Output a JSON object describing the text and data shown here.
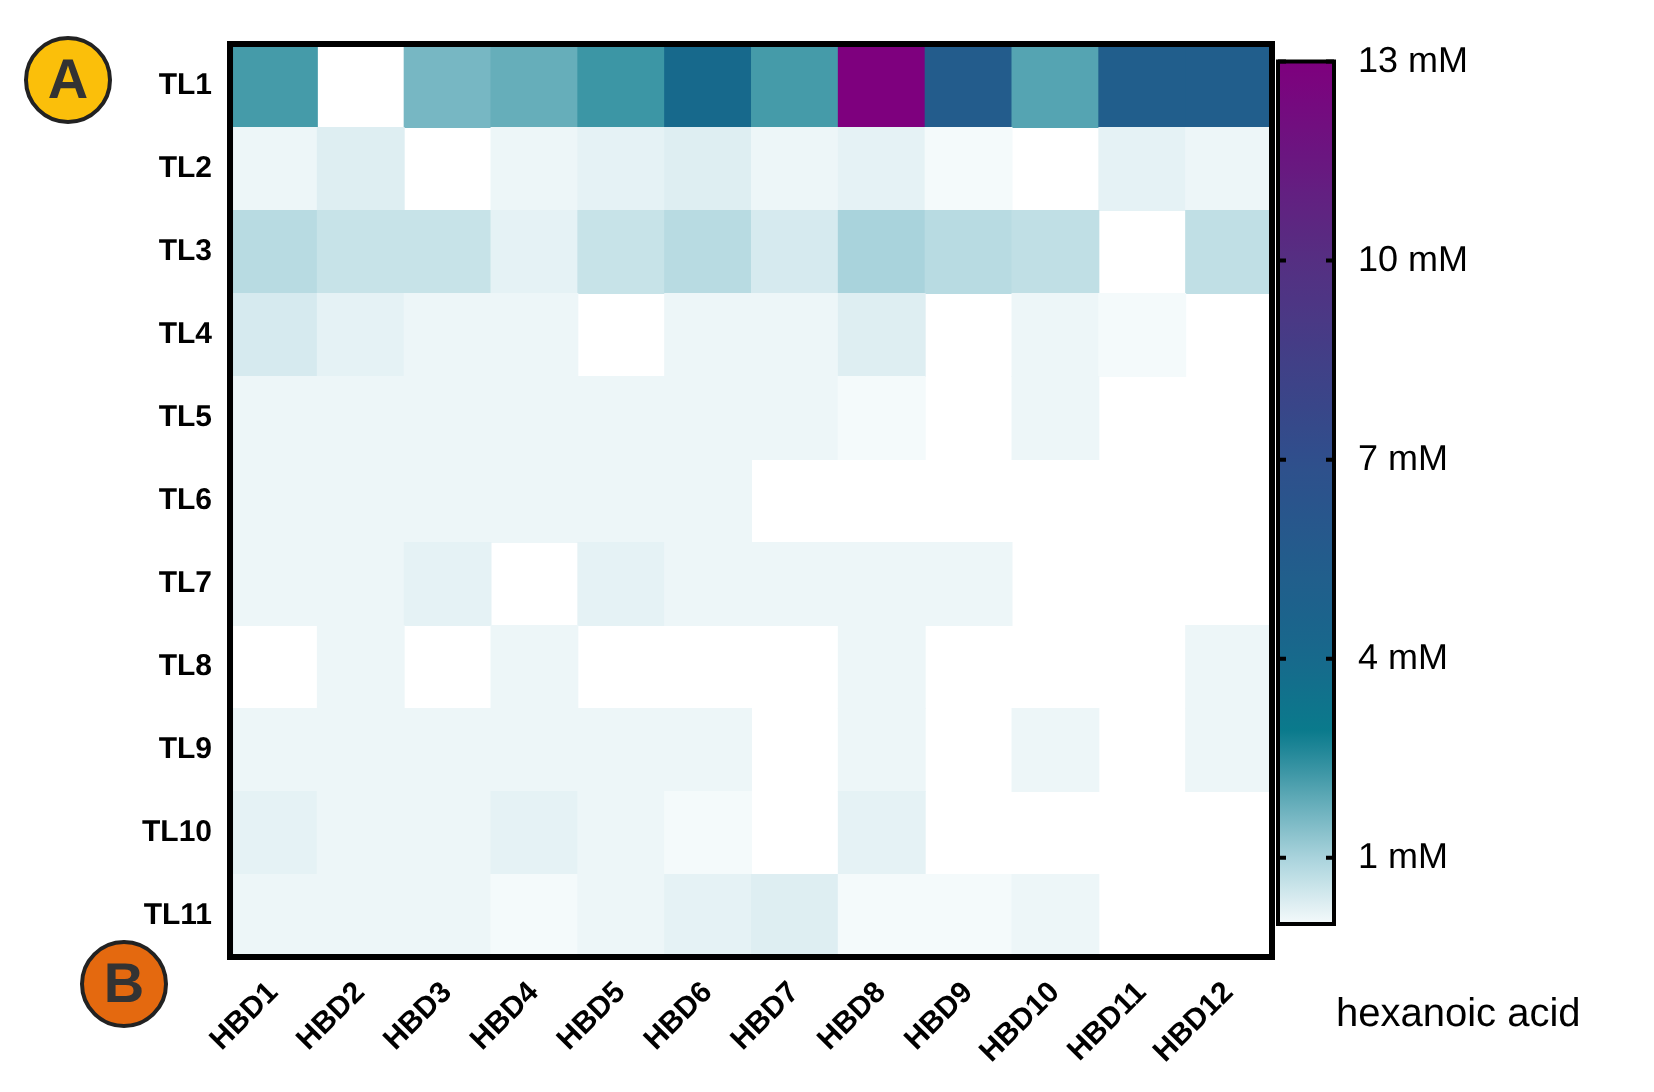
{
  "chart_data": {
    "type": "heatmap",
    "categories": [
      "HBD1",
      "HBD2",
      "HBD3",
      "HBD4",
      "HBD5",
      "HBD6",
      "HBD7",
      "HBD8",
      "HBD9",
      "HBD10",
      "HBD11",
      "HBD12"
    ],
    "y_categories": [
      "TL1",
      "TL2",
      "TL3",
      "TL4",
      "TL5",
      "TL6",
      "TL7",
      "TL8",
      "TL9",
      "TL10",
      "TL11"
    ],
    "cells": [
      [
        2.2,
        null,
        1.6,
        1.8,
        2.3,
        4.0,
        2.2,
        13,
        5.5,
        2.0,
        5.3,
        5.3
      ],
      [
        0.1,
        0.3,
        null,
        0.1,
        0.2,
        0.3,
        0.1,
        0.2,
        0.0,
        null,
        0.2,
        0.1
      ],
      [
        0.8,
        0.6,
        0.6,
        0.2,
        0.6,
        0.8,
        0.4,
        1.0,
        0.8,
        0.7,
        null,
        0.7
      ],
      [
        0.4,
        0.2,
        0.1,
        0.1,
        null,
        0.1,
        0.1,
        0.3,
        null,
        0.1,
        0.0,
        null
      ],
      [
        0.1,
        0.1,
        0.1,
        0.1,
        0.1,
        0.1,
        0.1,
        0.0,
        null,
        0.1,
        null,
        null
      ],
      [
        0.1,
        0.1,
        0.1,
        0.1,
        0.1,
        0.1,
        null,
        null,
        null,
        null,
        null,
        null
      ],
      [
        0.1,
        0.1,
        0.2,
        null,
        0.2,
        0.1,
        0.1,
        0.1,
        0.1,
        null,
        null,
        null
      ],
      [
        null,
        0.1,
        null,
        0.1,
        null,
        null,
        null,
        0.1,
        null,
        null,
        null,
        0.1
      ],
      [
        0.1,
        0.1,
        0.1,
        0.1,
        0.1,
        0.1,
        null,
        0.1,
        null,
        0.1,
        null,
        0.1
      ],
      [
        0.2,
        0.1,
        0.1,
        0.2,
        0.1,
        0.0,
        null,
        0.2,
        null,
        null,
        null,
        null
      ],
      [
        0.1,
        0.1,
        0.1,
        0.0,
        0.1,
        0.2,
        0.3,
        0.0,
        0.0,
        0.1,
        null,
        null
      ]
    ],
    "clim": [
      0,
      13
    ],
    "cticks": [
      {
        "value": 1,
        "label": "1 mM"
      },
      {
        "value": 4,
        "label": "4 mM"
      },
      {
        "value": 7,
        "label": "7 mM"
      },
      {
        "value": 10,
        "label": "10 mM"
      },
      {
        "value": 13,
        "label": "13 mM"
      }
    ],
    "clabel": "hexanoic acid",
    "annotations": [
      "A",
      "B"
    ]
  }
}
